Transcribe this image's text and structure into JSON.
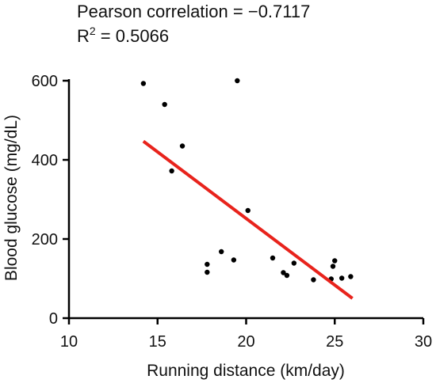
{
  "chart_data": {
    "type": "scatter",
    "title_lines": [
      "Pearson correlation = −0.7117",
      "R",
      "2",
      " = 0.5066"
    ],
    "xlabel": "Running distance (km/day)",
    "ylabel": "Blood glucose (mg/dL)",
    "xlim": [
      10,
      30
    ],
    "ylim": [
      0,
      600
    ],
    "xticks": [
      10,
      15,
      20,
      25,
      30
    ],
    "yticks": [
      0,
      200,
      400,
      600
    ],
    "xtick_labels": [
      "10",
      "15",
      "20",
      "25",
      "30"
    ],
    "ytick_labels": [
      "0",
      "200",
      "400",
      "600"
    ],
    "grid": false,
    "point_color": "#000000",
    "points": [
      {
        "x": 14.2,
        "y": 593
      },
      {
        "x": 15.4,
        "y": 540
      },
      {
        "x": 15.8,
        "y": 372
      },
      {
        "x": 16.4,
        "y": 435
      },
      {
        "x": 17.8,
        "y": 136
      },
      {
        "x": 17.8,
        "y": 116
      },
      {
        "x": 18.6,
        "y": 168
      },
      {
        "x": 19.3,
        "y": 147
      },
      {
        "x": 19.5,
        "y": 600
      },
      {
        "x": 20.1,
        "y": 272
      },
      {
        "x": 21.5,
        "y": 152
      },
      {
        "x": 22.1,
        "y": 115
      },
      {
        "x": 22.3,
        "y": 108
      },
      {
        "x": 22.7,
        "y": 139
      },
      {
        "x": 23.8,
        "y": 97
      },
      {
        "x": 24.8,
        "y": 99
      },
      {
        "x": 24.9,
        "y": 131
      },
      {
        "x": 25.0,
        "y": 145
      },
      {
        "x": 25.4,
        "y": 101
      },
      {
        "x": 25.9,
        "y": 105
      }
    ],
    "fit_line": {
      "color": "#e8231c",
      "x": [
        14.2,
        26.0
      ],
      "y": [
        447,
        50
      ]
    }
  }
}
